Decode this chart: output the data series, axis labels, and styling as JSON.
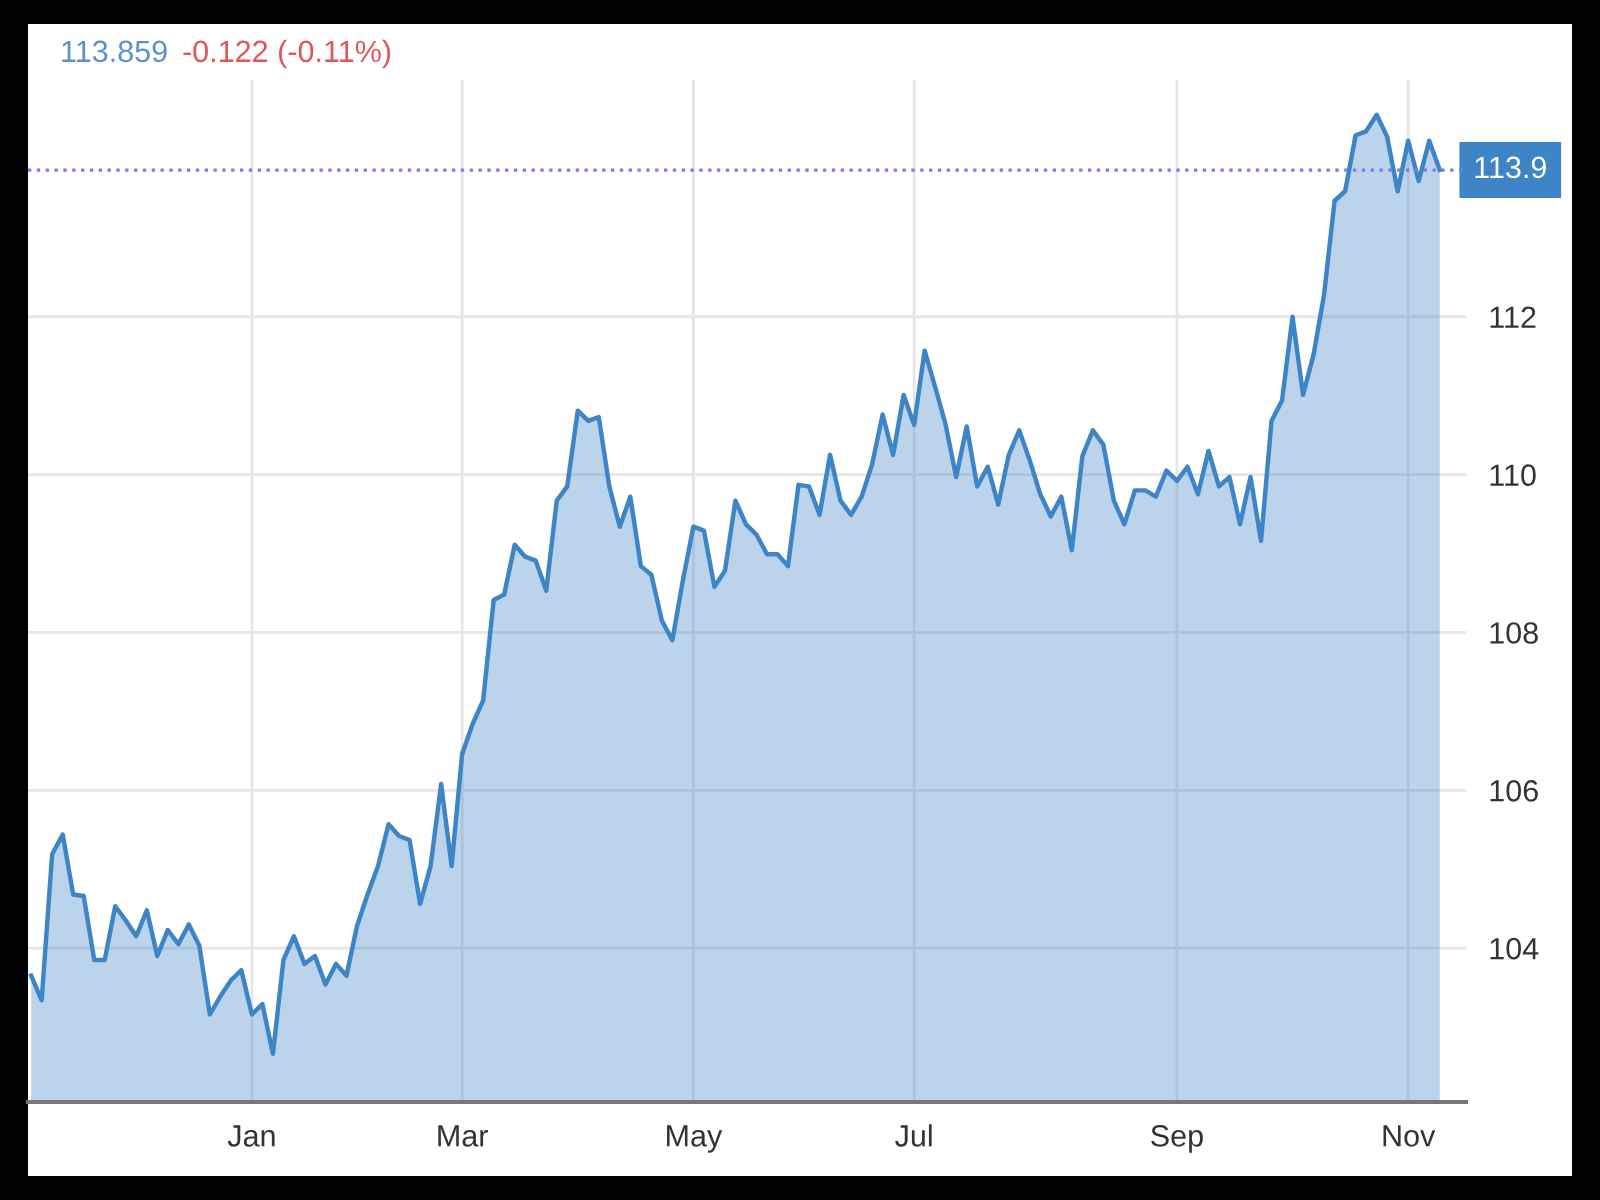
{
  "chart_data": {
    "type": "area",
    "annotations": [
      "113.859",
      "-0.122 (-0.11%)"
    ],
    "categories": [
      null,
      null,
      null,
      null,
      null,
      null,
      null,
      null,
      null,
      null,
      null,
      null,
      null,
      null,
      null,
      null,
      null,
      null,
      null,
      null,
      null,
      "Jan",
      null,
      null,
      null,
      null,
      null,
      null,
      null,
      null,
      null,
      null,
      null,
      null,
      null,
      null,
      null,
      null,
      null,
      null,
      null,
      "Mar",
      null,
      null,
      null,
      null,
      null,
      null,
      null,
      null,
      null,
      null,
      null,
      null,
      null,
      null,
      null,
      null,
      null,
      null,
      null,
      null,
      null,
      "May",
      null,
      null,
      null,
      null,
      null,
      null,
      null,
      null,
      null,
      null,
      null,
      null,
      null,
      null,
      null,
      null,
      null,
      null,
      null,
      null,
      "Jul",
      null,
      null,
      null,
      null,
      null,
      null,
      null,
      null,
      null,
      null,
      null,
      null,
      null,
      null,
      null,
      null,
      null,
      null,
      null,
      null,
      null,
      null,
      null,
      null,
      "Sep",
      null,
      null,
      null,
      null,
      null,
      null,
      null,
      null,
      null,
      null,
      null,
      null,
      null,
      null,
      null,
      null,
      null,
      null,
      null,
      null,
      null,
      "Nov",
      null,
      null,
      null
    ],
    "series": [
      {
        "color": "#3d85c6",
        "values": [
          103.65,
          103.34,
          105.19,
          105.44,
          104.68,
          104.66,
          103.85,
          103.85,
          104.53,
          104.35,
          104.15,
          104.48,
          103.9,
          104.23,
          104.05,
          104.3,
          104.03,
          103.16,
          103.39,
          103.59,
          103.72,
          103.16,
          103.29,
          102.66,
          103.85,
          104.15,
          103.8,
          103.9,
          103.54,
          103.8,
          103.65,
          104.28,
          104.68,
          105.04,
          105.57,
          105.42,
          105.37,
          104.56,
          105.04,
          106.08,
          105.04,
          106.46,
          106.84,
          107.14,
          108.41,
          108.48,
          109.11,
          108.96,
          108.91,
          108.53,
          109.67,
          109.85,
          110.81,
          110.68,
          110.73,
          109.85,
          109.34,
          109.72,
          108.84,
          108.73,
          108.15,
          107.9,
          108.66,
          109.34,
          109.29,
          108.58,
          108.78,
          109.67,
          109.37,
          109.24,
          108.99,
          108.99,
          108.84,
          109.87,
          109.85,
          109.49,
          110.25,
          109.67,
          109.49,
          109.72,
          110.13,
          110.76,
          110.25,
          111.01,
          110.63,
          111.57,
          111.11,
          110.63,
          109.97,
          110.61,
          109.85,
          110.1,
          109.62,
          110.25,
          110.56,
          110.18,
          109.75,
          109.47,
          109.72,
          109.04,
          110.23,
          110.56,
          110.38,
          109.67,
          109.37,
          109.8,
          109.8,
          109.72,
          110.05,
          109.92,
          110.1,
          109.75,
          110.3,
          109.85,
          109.97,
          109.37,
          109.97,
          109.16,
          110.68,
          110.94,
          112.0,
          111.01,
          111.52,
          112.28,
          113.47,
          113.59,
          114.3,
          114.35,
          114.56,
          114.28,
          113.59,
          114.23,
          113.72,
          114.23,
          113.86
        ]
      }
    ],
    "ylim": [
      102.05,
      115
    ],
    "yticks": [
      104,
      106,
      108,
      110,
      112
    ],
    "grid": true,
    "ref_lines": [
      {
        "axis": "y",
        "value": 113.859,
        "label": "113.9",
        "color": "#7b7bef",
        "line_style": "dotted"
      }
    ]
  }
}
